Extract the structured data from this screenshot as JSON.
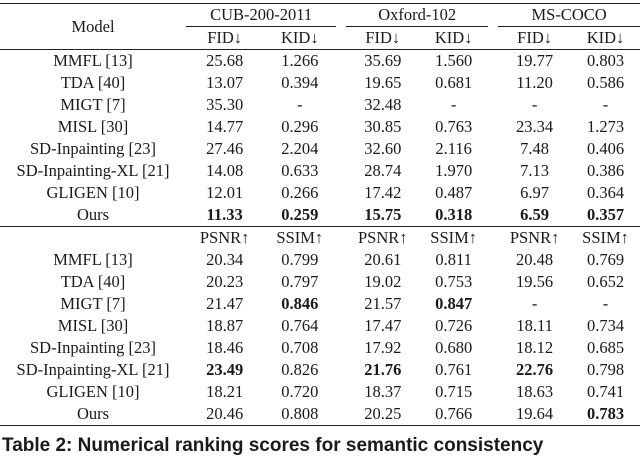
{
  "header": {
    "model": "Model",
    "groups": [
      "CUB-200-2011",
      "Oxford-102",
      "MS-COCO"
    ],
    "metrics_top": [
      "FID↓",
      "KID↓"
    ],
    "metrics_bottom": [
      "PSNR↑",
      "SSIM↑"
    ]
  },
  "top_rows": [
    {
      "model": "MMFL [13]",
      "values": [
        "25.68",
        "1.266",
        "35.69",
        "1.560",
        "19.77",
        "0.803"
      ],
      "bold": []
    },
    {
      "model": "TDA [40]",
      "values": [
        "13.07",
        "0.394",
        "19.65",
        "0.681",
        "11.20",
        "0.586"
      ],
      "bold": []
    },
    {
      "model": "MIGT [7]",
      "values": [
        "35.30",
        "-",
        "32.48",
        "-",
        "-",
        "-"
      ],
      "bold": []
    },
    {
      "model": "MISL [30]",
      "values": [
        "14.77",
        "0.296",
        "30.85",
        "0.763",
        "23.34",
        "1.273"
      ],
      "bold": []
    },
    {
      "model": "SD-Inpainting [23]",
      "values": [
        "27.46",
        "2.204",
        "32.60",
        "2.116",
        "7.48",
        "0.406"
      ],
      "bold": []
    },
    {
      "model": "SD-Inpainting-XL [21]",
      "values": [
        "14.08",
        "0.633",
        "28.74",
        "1.970",
        "7.13",
        "0.386"
      ],
      "bold": []
    },
    {
      "model": "GLIGEN [10]",
      "values": [
        "12.01",
        "0.266",
        "17.42",
        "0.487",
        "6.97",
        "0.364"
      ],
      "bold": []
    },
    {
      "model": "Ours",
      "values": [
        "11.33",
        "0.259",
        "15.75",
        "0.318",
        "6.59",
        "0.357"
      ],
      "bold": [
        0,
        1,
        2,
        3,
        4,
        5
      ]
    }
  ],
  "bottom_rows": [
    {
      "model": "MMFL [13]",
      "values": [
        "20.34",
        "0.799",
        "20.61",
        "0.811",
        "20.48",
        "0.769"
      ],
      "bold": []
    },
    {
      "model": "TDA [40]",
      "values": [
        "20.23",
        "0.797",
        "19.02",
        "0.753",
        "19.56",
        "0.652"
      ],
      "bold": []
    },
    {
      "model": "MIGT [7]",
      "values": [
        "21.47",
        "0.846",
        "21.57",
        "0.847",
        "-",
        "-"
      ],
      "bold": [
        1,
        3
      ]
    },
    {
      "model": "MISL [30]",
      "values": [
        "18.87",
        "0.764",
        "17.47",
        "0.726",
        "18.11",
        "0.734"
      ],
      "bold": []
    },
    {
      "model": "SD-Inpainting [23]",
      "values": [
        "18.46",
        "0.708",
        "17.92",
        "0.680",
        "18.12",
        "0.685"
      ],
      "bold": []
    },
    {
      "model": "SD-Inpainting-XL [21]",
      "values": [
        "23.49",
        "0.826",
        "21.76",
        "0.761",
        "22.76",
        "0.798"
      ],
      "bold": [
        0,
        2,
        4
      ]
    },
    {
      "model": "GLIGEN [10]",
      "values": [
        "18.21",
        "0.720",
        "18.37",
        "0.715",
        "18.63",
        "0.741"
      ],
      "bold": []
    },
    {
      "model": "Ours",
      "values": [
        "20.46",
        "0.808",
        "20.25",
        "0.766",
        "19.64",
        "0.783"
      ],
      "bold": [
        5
      ]
    }
  ],
  "caption": "Table 2: Numerical ranking scores for semantic consistency"
}
